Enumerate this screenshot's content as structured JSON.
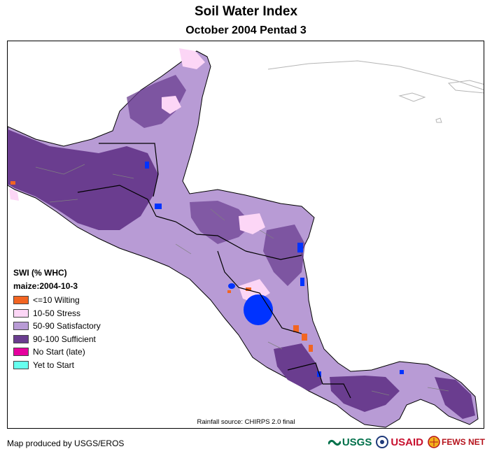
{
  "header": {
    "title": "Soil Water Index",
    "subtitle": "October 2004 Pentad 3"
  },
  "legend": {
    "title": "SWI (% WHC)",
    "subtitle": "maize:2004-10-3",
    "items": [
      {
        "label": "<=10 Wilting",
        "color": "#f26522"
      },
      {
        "label": "10-50 Stress",
        "color": "#fcd6f6"
      },
      {
        "label": "50-90 Satisfactory",
        "color": "#b89bd5"
      },
      {
        "label": "90-100 Sufficient",
        "color": "#6a3d8f"
      },
      {
        "label": "No Start (late)",
        "color": "#e6009e"
      },
      {
        "label": "Yet to Start",
        "color": "#66ffee"
      }
    ]
  },
  "colors": {
    "water_body": "#0033ff",
    "borders": "#000000",
    "inner_borders": "#808080",
    "coastline_outside": "#b5b5b5"
  },
  "footer": {
    "source": "Rainfall source: CHIRPS 2.0 final",
    "producer": "Map produced by USGS/EROS",
    "logos": {
      "usgs": "USGS",
      "usaid": "USAID",
      "fews": "FEWS NET"
    }
  }
}
